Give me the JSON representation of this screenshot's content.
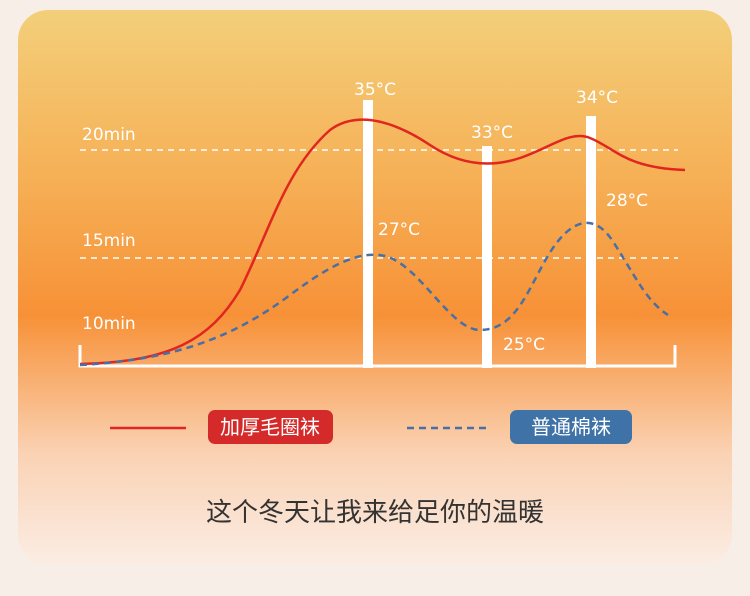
{
  "axis_labels": [
    "20min",
    "15min",
    "10min"
  ],
  "peak_labels": [
    "35°C",
    "33°C",
    "34°C"
  ],
  "curve_labels": [
    "27°C",
    "25°C",
    "28°C"
  ],
  "legend": [
    {
      "name": "加厚毛圈袜"
    },
    {
      "name": "普通棉袜"
    }
  ],
  "caption": "这个冬天让我来给足你的温暖"
}
